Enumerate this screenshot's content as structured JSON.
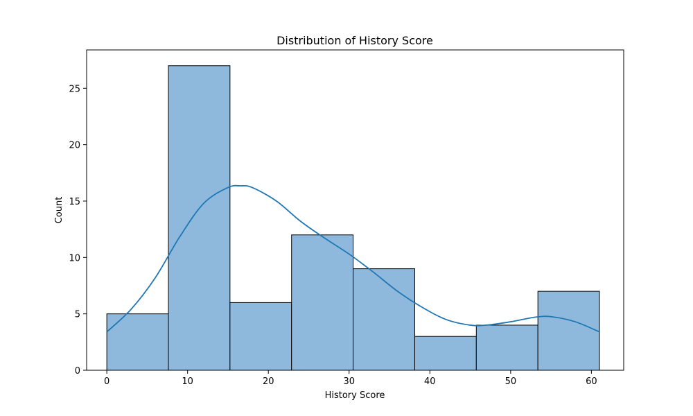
{
  "chart_data": {
    "type": "histogram",
    "title": "Distribution of History Score",
    "xlabel": "History Score",
    "ylabel": "Count",
    "bin_edges": [
      0,
      7.625,
      15.25,
      22.875,
      30.5,
      38.125,
      45.75,
      53.375,
      61
    ],
    "counts": [
      5,
      27,
      6,
      12,
      9,
      3,
      4,
      7
    ],
    "kde": {
      "x": [
        0,
        3,
        6,
        9,
        12,
        15,
        16.5,
        18,
        21,
        24,
        27,
        30,
        33,
        36,
        39,
        42,
        45,
        47,
        50,
        53,
        55,
        58,
        61
      ],
      "y": [
        3.4,
        5.4,
        8.2,
        11.8,
        14.8,
        16.2,
        16.35,
        16.2,
        15.0,
        13.2,
        11.7,
        10.3,
        8.7,
        7.0,
        5.6,
        4.5,
        4.0,
        4.0,
        4.3,
        4.7,
        4.75,
        4.3,
        3.4
      ]
    },
    "xticks": [
      0,
      10,
      20,
      30,
      40,
      50,
      60
    ],
    "yticks": [
      0,
      5,
      10,
      15,
      20,
      25
    ],
    "xlim": [
      -2.5,
      64
    ],
    "ylim": [
      0,
      28.4
    ],
    "bar_color": "#8fb9dc",
    "bar_edge_color": "#000000",
    "line_color": "#1f77b4",
    "grid": false,
    "legend": false
  }
}
